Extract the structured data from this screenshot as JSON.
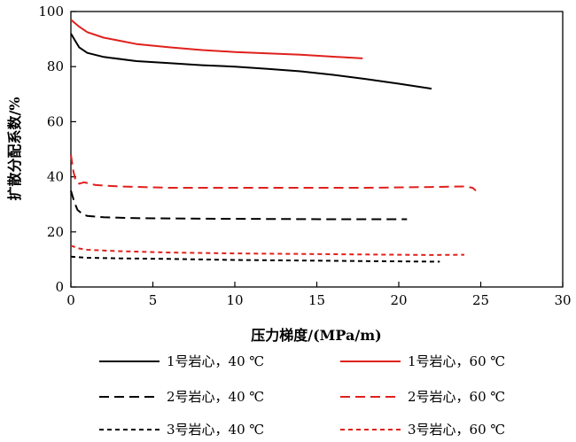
{
  "chart_data": {
    "type": "line",
    "xlabel": "压力梯度/(MPa/m)",
    "ylabel": "扩散分配系数/%",
    "xlim": [
      0,
      30
    ],
    "ylim": [
      0,
      100
    ],
    "xticks": [
      0,
      5,
      10,
      15,
      20,
      25,
      30
    ],
    "yticks": [
      0,
      20,
      40,
      60,
      80,
      100
    ],
    "x_tick_labels": [
      "0",
      "5",
      "10",
      "15",
      "20",
      "25",
      "30"
    ],
    "y_tick_labels": [
      "0",
      "20",
      "40",
      "60",
      "80",
      "100"
    ],
    "grid": false,
    "legend_placement": "bottom",
    "series": [
      {
        "name": "1号岩心，40 ℃",
        "color": "#000000",
        "dash": "solid",
        "points": [
          [
            0,
            92
          ],
          [
            0.2,
            90
          ],
          [
            0.5,
            87
          ],
          [
            1,
            85
          ],
          [
            2,
            83.5
          ],
          [
            4,
            82
          ],
          [
            6,
            81.3
          ],
          [
            8,
            80.5
          ],
          [
            10,
            80
          ],
          [
            12,
            79.2
          ],
          [
            14,
            78.3
          ],
          [
            16,
            77
          ],
          [
            18,
            75.5
          ],
          [
            20,
            73.8
          ],
          [
            22,
            72
          ]
        ]
      },
      {
        "name": "1号岩心，60 ℃",
        "color": "#e0201c",
        "dash": "solid",
        "points": [
          [
            0,
            97
          ],
          [
            0.2,
            96
          ],
          [
            0.5,
            94.5
          ],
          [
            1,
            92.5
          ],
          [
            2,
            90.5
          ],
          [
            4,
            88.2
          ],
          [
            6,
            87
          ],
          [
            8,
            86
          ],
          [
            10,
            85.3
          ],
          [
            12,
            84.8
          ],
          [
            14,
            84.3
          ],
          [
            16,
            83.6
          ],
          [
            17.8,
            83
          ]
        ]
      },
      {
        "name": "2号岩心，40 ℃",
        "color": "#000000",
        "dash": "long",
        "points": [
          [
            0,
            35
          ],
          [
            0.2,
            31
          ],
          [
            0.4,
            28
          ],
          [
            0.7,
            26.5
          ],
          [
            1,
            25.8
          ],
          [
            2,
            25.3
          ],
          [
            4,
            25
          ],
          [
            8,
            24.8
          ],
          [
            12,
            24.7
          ],
          [
            16,
            24.6
          ],
          [
            20.5,
            24.6
          ]
        ]
      },
      {
        "name": "2号岩心，60 ℃",
        "color": "#e0201c",
        "dash": "long",
        "points": [
          [
            0,
            48
          ],
          [
            0.15,
            42
          ],
          [
            0.3,
            38.5
          ],
          [
            0.5,
            37.5
          ],
          [
            0.8,
            38
          ],
          [
            1.5,
            37
          ],
          [
            3,
            36.5
          ],
          [
            6,
            36
          ],
          [
            10,
            36
          ],
          [
            14,
            36
          ],
          [
            18,
            36
          ],
          [
            22,
            36.3
          ],
          [
            24,
            36.5
          ],
          [
            24.5,
            36
          ],
          [
            24.7,
            35
          ]
        ]
      },
      {
        "name": "3号岩心，40 ℃",
        "color": "#000000",
        "dash": "short",
        "points": [
          [
            0,
            11
          ],
          [
            1,
            10.6
          ],
          [
            3,
            10.4
          ],
          [
            6,
            10.2
          ],
          [
            10,
            9.8
          ],
          [
            14,
            9.6
          ],
          [
            18,
            9.4
          ],
          [
            22.5,
            9.2
          ]
        ]
      },
      {
        "name": "3号岩心，60 ℃",
        "color": "#e0201c",
        "dash": "short",
        "points": [
          [
            0,
            15
          ],
          [
            0.5,
            14
          ],
          [
            1,
            13.5
          ],
          [
            3,
            13
          ],
          [
            6,
            12.5
          ],
          [
            10,
            12.2
          ],
          [
            14,
            12
          ],
          [
            18,
            11.8
          ],
          [
            22,
            11.6
          ],
          [
            24,
            11.7
          ]
        ]
      }
    ]
  }
}
